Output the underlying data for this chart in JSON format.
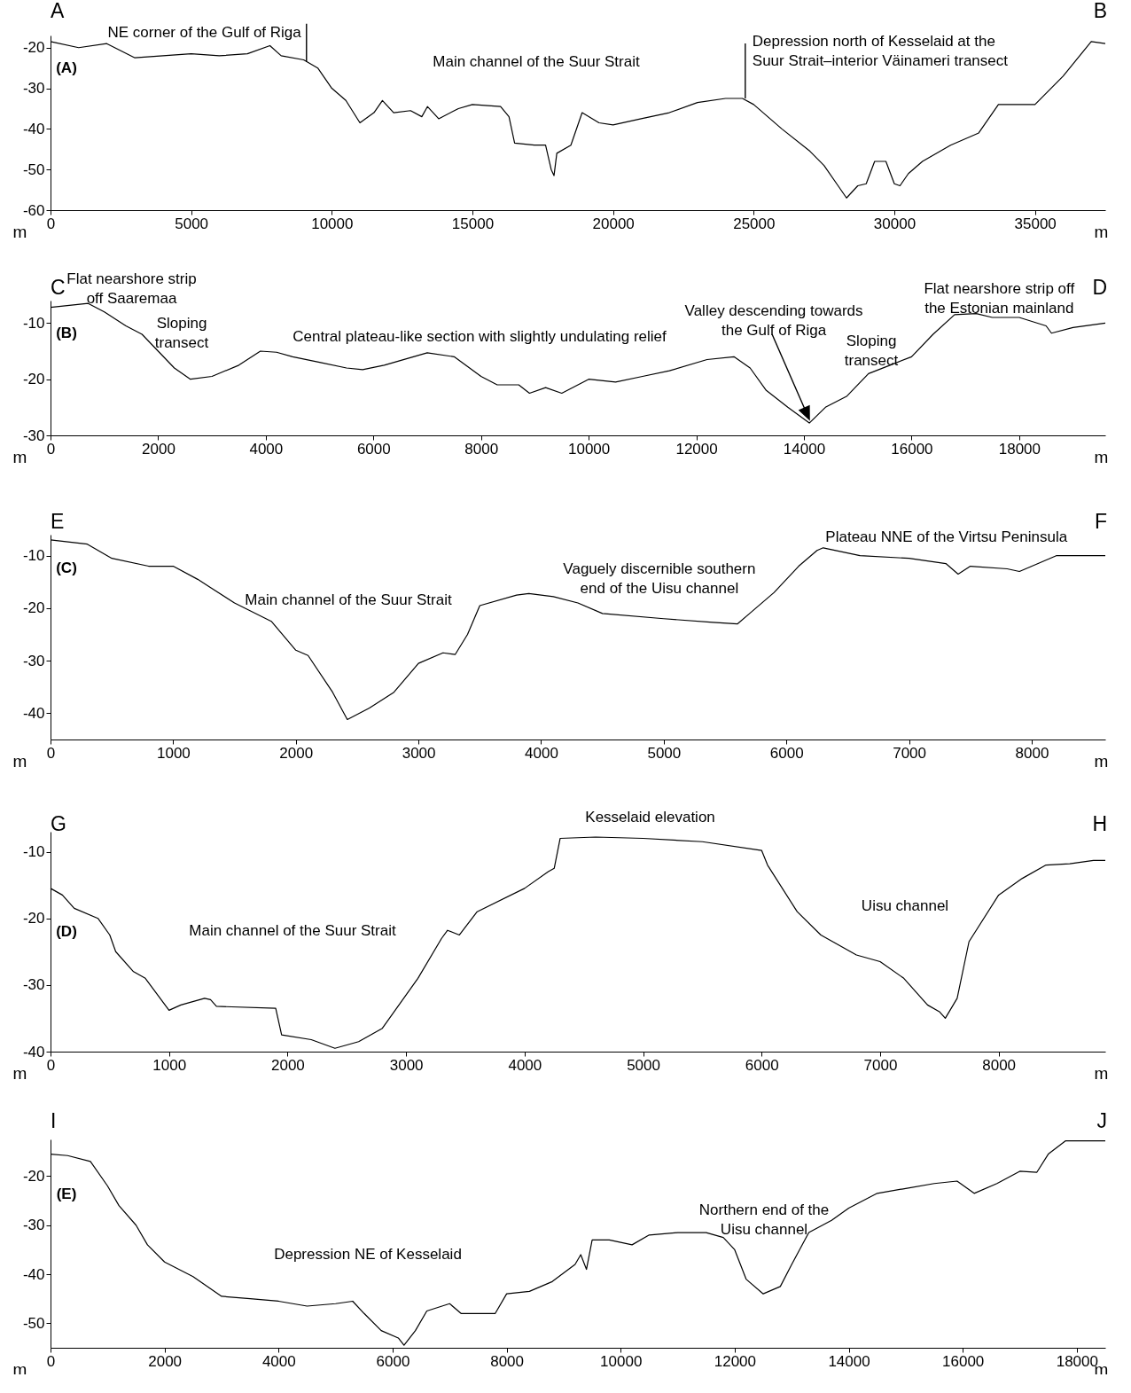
{
  "chart_data": [
    {
      "type": "line",
      "color": "#000000",
      "xlabel": "m",
      "ylabel": "m",
      "grid": false,
      "xlim": [
        0,
        37500
      ],
      "xticks": [
        0,
        5000,
        10000,
        15000,
        20000,
        25000,
        30000,
        35000
      ],
      "ylim": [
        -60,
        -17
      ],
      "yticks": [
        -60,
        -50,
        -40,
        -30,
        -20
      ],
      "x": [
        0,
        1000,
        2000,
        3000,
        5000,
        6000,
        7000,
        7800,
        8200,
        9000,
        9500,
        10000,
        10500,
        11000,
        11500,
        11800,
        12200,
        12800,
        13200,
        13400,
        13800,
        14500,
        15000,
        16000,
        16300,
        16500,
        17200,
        17600,
        17800,
        17900,
        18000,
        18500,
        18900,
        19500,
        20000,
        21000,
        22000,
        23000,
        24000,
        24600,
        25000,
        26000,
        27000,
        27500,
        28000,
        28300,
        28700,
        29000,
        29300,
        29700,
        30000,
        30200,
        30500,
        31000,
        32000,
        33000,
        33700,
        34000,
        35000,
        36000,
        37000,
        37500
      ],
      "values": [
        -18.5,
        -20,
        -19,
        -22.5,
        -21.5,
        -22,
        -21.5,
        -19.5,
        -22,
        -23,
        -25,
        -30,
        -33,
        -38.5,
        -36,
        -33,
        -36,
        -35.5,
        -37,
        -34.5,
        -37.5,
        -35,
        -34,
        -34.5,
        -37,
        -43.5,
        -44,
        -44,
        -50,
        -51.5,
        -46,
        -44,
        -36,
        -38.5,
        -39,
        -37.5,
        -36,
        -33.5,
        -32.5,
        -32.5,
        -34,
        -40,
        -45.5,
        -49,
        -54,
        -57,
        -54,
        -53.5,
        -48,
        -48,
        -53.5,
        -54,
        -51,
        -48,
        -44,
        -41,
        -34,
        -34,
        -34,
        -27,
        -18.5,
        -19
      ],
      "annotations": [
        "A",
        "B",
        "(A)",
        {
          "text": "NE corner of the Gulf of Riga",
          "x": 9100,
          "y": -23.5
        },
        "Main channel of the Suur Strait",
        {
          "text": "Depression north of Kesselaid at the\nSuur Strait–interior Väinameri transect",
          "x": 24700,
          "y": -32.5
        }
      ]
    },
    {
      "type": "line",
      "color": "#000000",
      "xlabel": "m",
      "ylabel": "m",
      "grid": false,
      "xlim": [
        0,
        19600
      ],
      "xticks": [
        0,
        2000,
        4000,
        6000,
        8000,
        10000,
        12000,
        14000,
        16000,
        18000
      ],
      "ylim": [
        -30,
        -6
      ],
      "yticks": [
        -30,
        -20,
        -10
      ],
      "x": [
        0,
        700,
        1000,
        1400,
        1700,
        2000,
        2300,
        2600,
        3000,
        3500,
        3900,
        4200,
        4500,
        5000,
        5500,
        5800,
        6200,
        7000,
        7500,
        8000,
        8300,
        8700,
        8900,
        9200,
        9500,
        10000,
        10500,
        11000,
        11500,
        12200,
        12700,
        13000,
        13300,
        13700,
        14100,
        14400,
        14800,
        15200,
        15600,
        16000,
        16400,
        16800,
        17200,
        17500,
        18000,
        18500,
        18600,
        19000,
        19600
      ],
      "values": [
        -7.2,
        -6.5,
        -8,
        -10.5,
        -12,
        -15,
        -18,
        -20,
        -19.5,
        -17.5,
        -15,
        -15.2,
        -16,
        -17,
        -18,
        -18.3,
        -17.5,
        -15.3,
        -16,
        -19.5,
        -21,
        -21,
        -22.5,
        -21.5,
        -22.5,
        -20,
        -20.5,
        -19.5,
        -18.5,
        -16.5,
        -16,
        -18,
        -22,
        -25,
        -27.8,
        -25,
        -23,
        -19,
        -17.5,
        -16,
        -12,
        -8.5,
        -8.3,
        -9,
        -9,
        -10.5,
        -11.8,
        -10.8,
        -10
      ],
      "annotations": [
        "C",
        "D",
        "(B)",
        {
          "text": "Flat nearshore strip\noff Saaremaa",
          "x": 700,
          "y": -6.5
        },
        "Sloping\ntransect",
        {
          "text": "Central plateau-like section with slightly undulating relief",
          "x": 7000,
          "y": -15.3
        },
        {
          "text": "Valley descending towards\nthe Gulf of Riga",
          "x": 14100,
          "y": -27.8
        },
        "Sloping\ntransect",
        {
          "text": "Flat nearshore strip off\nthe Estonian mainland",
          "x": 17200,
          "y": -8.3
        }
      ]
    },
    {
      "type": "line",
      "color": "#000000",
      "xlabel": "m",
      "ylabel": "m",
      "grid": false,
      "xlim": [
        0,
        8600
      ],
      "xticks": [
        0,
        1000,
        2000,
        3000,
        4000,
        5000,
        6000,
        7000,
        8000
      ],
      "ylim": [
        -45,
        -6
      ],
      "yticks": [
        -40,
        -30,
        -20,
        -10
      ],
      "x": [
        0,
        300,
        500,
        800,
        1000,
        1200,
        1300,
        1500,
        1800,
        2000,
        2100,
        2300,
        2420,
        2600,
        2800,
        3000,
        3200,
        3300,
        3400,
        3500,
        3800,
        3900,
        4100,
        4300,
        4500,
        5000,
        5400,
        5600,
        5700,
        5900,
        6100,
        6250,
        6300,
        6600,
        7000,
        7300,
        7400,
        7500,
        7800,
        7900,
        8200,
        8600
      ],
      "values": [
        -7,
        -7.8,
        -10.5,
        -12,
        -12,
        -14.5,
        -16,
        -19,
        -22.5,
        -28,
        -29,
        -36,
        -41.2,
        -39,
        -36,
        -30.5,
        -28.5,
        -28.8,
        -25,
        -19.5,
        -17.5,
        -17.2,
        -17.8,
        -19,
        -21,
        -22,
        -22.7,
        -23,
        -21,
        -17,
        -12,
        -9,
        -8.5,
        -10,
        -10.5,
        -11.5,
        -13.5,
        -12,
        -12.5,
        -13,
        -10,
        -10
      ],
      "annotations": [
        "E",
        "F",
        "(C)",
        "Main channel of the Suur Strait",
        {
          "text": "Vaguely discernible southern\nend of the Uisu channel",
          "x": 5600,
          "y": -23
        },
        {
          "text": "Plateau NNE of the Virtsu Peninsula",
          "x": 6300,
          "y": -8.5
        }
      ]
    },
    {
      "type": "line",
      "color": "#000000",
      "xlabel": "m",
      "ylabel": "m",
      "grid": false,
      "xlim": [
        0,
        8900
      ],
      "xticks": [
        0,
        1000,
        2000,
        3000,
        4000,
        5000,
        6000,
        7000,
        8000
      ],
      "ylim": [
        -40,
        -7
      ],
      "yticks": [
        -40,
        -30,
        -20,
        -10
      ],
      "x": [
        0,
        100,
        200,
        400,
        500,
        550,
        700,
        800,
        1000,
        1100,
        1300,
        1350,
        1400,
        1900,
        1950,
        2200,
        2400,
        2600,
        2800,
        2900,
        3100,
        3300,
        3350,
        3450,
        3600,
        4000,
        4200,
        4250,
        4300,
        4600,
        5000,
        5500,
        6000,
        6050,
        6300,
        6500,
        6800,
        7000,
        7200,
        7400,
        7500,
        7550,
        7650,
        7750,
        8000,
        8200,
        8400,
        8600,
        8800,
        8900
      ],
      "values": [
        -15.5,
        -16.5,
        -18.5,
        -20,
        -22.5,
        -25,
        -28,
        -29,
        -33.8,
        -33,
        -32,
        -32.2,
        -33.2,
        -33.5,
        -37.5,
        -38.2,
        -39.5,
        -38.5,
        -36.5,
        -34,
        -29,
        -23,
        -21.8,
        -22.5,
        -19,
        -15.5,
        -13,
        -12.5,
        -8,
        -7.8,
        -8,
        -8.5,
        -9.8,
        -12,
        -19,
        -22.5,
        -25.5,
        -26.5,
        -29,
        -33,
        -34,
        -35,
        -32,
        -23.5,
        -16.5,
        -14,
        -12,
        -11.8,
        -11.3,
        -11.3
      ],
      "annotations": [
        "G",
        "H",
        "(D)",
        {
          "text": "Kesselaid elevation",
          "x": 5000,
          "y": -8
        },
        "Main channel of the Suur Strait",
        "Uisu channel"
      ]
    },
    {
      "type": "line",
      "color": "#000000",
      "xlabel": "m",
      "ylabel": "m",
      "grid": false,
      "xlim": [
        0,
        18500
      ],
      "xticks": [
        0,
        2000,
        4000,
        6000,
        8000,
        10000,
        12000,
        14000,
        16000,
        18000
      ],
      "ylim": [
        -55,
        -12.5
      ],
      "yticks": [
        -50,
        -40,
        -30,
        -20
      ],
      "x": [
        0,
        300,
        700,
        1000,
        1200,
        1500,
        1700,
        2000,
        2500,
        3000,
        3500,
        4000,
        4500,
        5000,
        5300,
        5500,
        5800,
        6100,
        6200,
        6400,
        6600,
        7000,
        7200,
        7800,
        8000,
        8400,
        8800,
        9200,
        9300,
        9400,
        9500,
        9800,
        10200,
        10500,
        11000,
        11500,
        11800,
        12000,
        12200,
        12500,
        12800,
        13000,
        13300,
        13700,
        14000,
        14500,
        15000,
        15500,
        15900,
        16200,
        16600,
        17000,
        17300,
        17500,
        17800,
        18500
      ],
      "values": [
        -15.5,
        -15.8,
        -17,
        -22,
        -26,
        -30,
        -34,
        -37.5,
        -40.5,
        -44.5,
        -45,
        -45.5,
        -46.5,
        -46,
        -45.5,
        -48,
        -51.5,
        -53,
        -54.5,
        -51.5,
        -47.5,
        -46,
        -48,
        -48,
        -44,
        -43.5,
        -41.5,
        -38,
        -36,
        -39,
        -33,
        -33,
        -34,
        -32,
        -31.5,
        -31.5,
        -32.5,
        -35,
        -41,
        -44,
        -42.5,
        -38,
        -31.5,
        -29,
        -26.5,
        -23.5,
        -22.5,
        -21.5,
        -21,
        -23.5,
        -21.5,
        -19,
        -19.2,
        -15.5,
        -12.8,
        -12.8
      ],
      "annotations": [
        "I",
        "J",
        "(E)",
        "Depression NE of Kesselaid",
        "Northern end of the\nUisu channel"
      ]
    }
  ]
}
